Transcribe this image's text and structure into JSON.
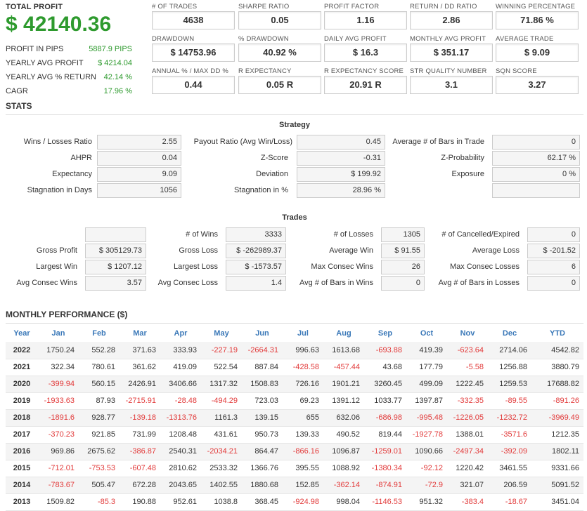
{
  "summary": {
    "total_profit_label": "TOTAL PROFIT",
    "total_profit_value": "$ 42140.36",
    "rows": [
      {
        "label": "PROFIT IN PIPS",
        "value": "5887.9 PIPS"
      },
      {
        "label": "YEARLY AVG PROFIT",
        "value": "$ 4214.04"
      },
      {
        "label": "YEARLY AVG % RETURN",
        "value": "42.14 %"
      },
      {
        "label": "CAGR",
        "value": "17.96 %"
      }
    ]
  },
  "metrics": [
    {
      "label": "# OF TRADES",
      "value": "4638"
    },
    {
      "label": "SHARPE RATIO",
      "value": "0.05"
    },
    {
      "label": "PROFIT FACTOR",
      "value": "1.16"
    },
    {
      "label": "RETURN / DD RATIO",
      "value": "2.86"
    },
    {
      "label": "WINNING PERCENTAGE",
      "value": "71.86 %"
    },
    {
      "label": "DRAWDOWN",
      "value": "$ 14753.96"
    },
    {
      "label": "% DRAWDOWN",
      "value": "40.92 %"
    },
    {
      "label": "DAILY AVG PROFIT",
      "value": "$ 16.3"
    },
    {
      "label": "MONTHLY AVG PROFIT",
      "value": "$ 351.17"
    },
    {
      "label": "AVERAGE TRADE",
      "value": "$ 9.09"
    },
    {
      "label": "ANNUAL % / MAX DD %",
      "value": "0.44"
    },
    {
      "label": "R EXPECTANCY",
      "value": "0.05 R"
    },
    {
      "label": "R EXPECTANCY SCORE",
      "value": "20.91 R"
    },
    {
      "label": "STR QUALITY NUMBER",
      "value": "3.1"
    },
    {
      "label": "SQN SCORE",
      "value": "3.27"
    }
  ],
  "stats": {
    "title": "STATS",
    "strategy_title": "Strategy",
    "strategy": [
      {
        "label": "Wins / Losses Ratio",
        "value": "2.55"
      },
      {
        "label": "Payout Ratio (Avg Win/Loss)",
        "value": "0.45"
      },
      {
        "label": "Average # of Bars in Trade",
        "value": "0"
      },
      {
        "label": "AHPR",
        "value": "0.04"
      },
      {
        "label": "Z-Score",
        "value": "-0.31"
      },
      {
        "label": "Z-Probability",
        "value": "62.17 %"
      },
      {
        "label": "Expectancy",
        "value": "9.09"
      },
      {
        "label": "Deviation",
        "value": "$ 199.92"
      },
      {
        "label": "Exposure",
        "value": "0 %"
      },
      {
        "label": "Stagnation in Days",
        "value": "1056"
      },
      {
        "label": "Stagnation in %",
        "value": "28.96 %"
      },
      {
        "label": "",
        "value": ""
      }
    ],
    "trades_title": "Trades",
    "trades": [
      {
        "label": "",
        "value": ""
      },
      {
        "label": "# of Wins",
        "value": "3333"
      },
      {
        "label": "# of Losses",
        "value": "1305"
      },
      {
        "label": "# of Cancelled/Expired",
        "value": "0"
      },
      {
        "label": "Gross Profit",
        "value": "$ 305129.73"
      },
      {
        "label": "Gross Loss",
        "value": "$ -262989.37"
      },
      {
        "label": "Average Win",
        "value": "$ 91.55"
      },
      {
        "label": "Average Loss",
        "value": "$ -201.52"
      },
      {
        "label": "Largest Win",
        "value": "$ 1207.12"
      },
      {
        "label": "Largest Loss",
        "value": "$ -1573.57"
      },
      {
        "label": "Max Consec Wins",
        "value": "26"
      },
      {
        "label": "Max Consec Losses",
        "value": "6"
      },
      {
        "label": "Avg Consec Wins",
        "value": "3.57"
      },
      {
        "label": "Avg Consec Loss",
        "value": "1.4"
      },
      {
        "label": "Avg # of Bars in Wins",
        "value": "0"
      },
      {
        "label": "Avg # of Bars in Losses",
        "value": "0"
      }
    ]
  },
  "monthly": {
    "title": "MONTHLY PERFORMANCE ($)",
    "headers": [
      "Year",
      "Jan",
      "Feb",
      "Mar",
      "Apr",
      "May",
      "Jun",
      "Jul",
      "Aug",
      "Sep",
      "Oct",
      "Nov",
      "Dec",
      "YTD"
    ],
    "rows": [
      [
        "2022",
        "1750.24",
        "552.28",
        "371.63",
        "333.93",
        "-227.19",
        "-2664.31",
        "996.63",
        "1613.68",
        "-693.88",
        "419.39",
        "-623.64",
        "2714.06",
        "4542.82"
      ],
      [
        "2021",
        "322.34",
        "780.61",
        "361.62",
        "419.09",
        "522.54",
        "887.84",
        "-428.58",
        "-457.44",
        "43.68",
        "177.79",
        "-5.58",
        "1256.88",
        "3880.79"
      ],
      [
        "2020",
        "-399.94",
        "560.15",
        "2426.91",
        "3406.66",
        "1317.32",
        "1508.83",
        "726.16",
        "1901.21",
        "3260.45",
        "499.09",
        "1222.45",
        "1259.53",
        "17688.82"
      ],
      [
        "2019",
        "-1933.63",
        "87.93",
        "-2715.91",
        "-28.48",
        "-494.29",
        "723.03",
        "69.23",
        "1391.12",
        "1033.77",
        "1397.87",
        "-332.35",
        "-89.55",
        "-891.26"
      ],
      [
        "2018",
        "-1891.6",
        "928.77",
        "-139.18",
        "-1313.76",
        "1161.3",
        "139.15",
        "655",
        "632.06",
        "-686.98",
        "-995.48",
        "-1226.05",
        "-1232.72",
        "-3969.49"
      ],
      [
        "2017",
        "-370.23",
        "921.85",
        "731.99",
        "1208.48",
        "431.61",
        "950.73",
        "139.33",
        "490.52",
        "819.44",
        "-1927.78",
        "1388.01",
        "-3571.6",
        "1212.35"
      ],
      [
        "2016",
        "969.86",
        "2675.62",
        "-386.87",
        "2540.31",
        "-2034.21",
        "864.47",
        "-866.16",
        "1096.87",
        "-1259.01",
        "1090.66",
        "-2497.34",
        "-392.09",
        "1802.11"
      ],
      [
        "2015",
        "-712.01",
        "-753.53",
        "-607.48",
        "2810.62",
        "2533.32",
        "1366.76",
        "395.55",
        "1088.92",
        "-1380.34",
        "-92.12",
        "1220.42",
        "3461.55",
        "9331.66"
      ],
      [
        "2014",
        "-783.67",
        "505.47",
        "672.28",
        "2043.65",
        "1402.55",
        "1880.68",
        "152.85",
        "-362.14",
        "-874.91",
        "-72.9",
        "321.07",
        "206.59",
        "5091.52"
      ],
      [
        "2013",
        "1509.82",
        "-85.3",
        "190.88",
        "952.61",
        "1038.8",
        "368.45",
        "-924.98",
        "998.04",
        "-1146.53",
        "951.32",
        "-383.4",
        "-18.67",
        "3451.04"
      ]
    ]
  },
  "colors": {
    "positive": "#2e9a2e",
    "negative": "#e23a3a",
    "header_blue": "#3a78b8"
  }
}
